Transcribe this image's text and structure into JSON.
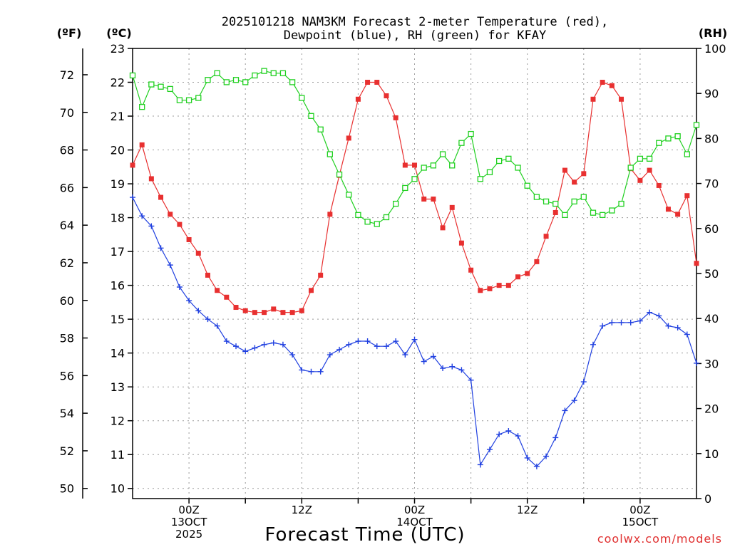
{
  "chart_data": {
    "type": "line",
    "title": [
      "2025101218 NAM3KM Forecast 2-meter Temperature (red),",
      "Dewpoint (blue), RH (green) for KFAY"
    ],
    "xlabel": "Forecast Time (UTC)",
    "credit": "coolwx.com/models",
    "units": {
      "fahrenheit": "(ºF)",
      "celsius": "(ºC)",
      "rh": "(RH)"
    },
    "x_range_hours": [
      0,
      60
    ],
    "celsius_range": [
      9.7,
      23
    ],
    "rh_range": [
      0,
      100
    ],
    "fahrenheit_ticks": [
      "50",
      "52",
      "54",
      "56",
      "58",
      "60",
      "62",
      "64",
      "66",
      "68",
      "70",
      "72"
    ],
    "celsius_ticks": [
      "10",
      "11",
      "12",
      "13",
      "14",
      "15",
      "16",
      "17",
      "18",
      "19",
      "20",
      "21",
      "22",
      "23"
    ],
    "rh_ticks": [
      "0",
      "10",
      "20",
      "30",
      "40",
      "50",
      "60",
      "70",
      "80",
      "90",
      "100"
    ],
    "x_ticks": [
      {
        "hour": 6,
        "lines": [
          "00Z",
          "13OCT",
          "2025"
        ]
      },
      {
        "hour": 18,
        "lines": [
          "12Z"
        ]
      },
      {
        "hour": 30,
        "lines": [
          "00Z",
          "14OCT"
        ]
      },
      {
        "hour": 42,
        "lines": [
          "12Z"
        ]
      },
      {
        "hour": 54,
        "lines": [
          "00Z",
          "15OCT"
        ]
      }
    ],
    "series": [
      {
        "name": "2-meter Temperature",
        "unit": "°C",
        "color": "#e83030",
        "marker": "filled-square",
        "values": [
          19.55,
          20.15,
          19.15,
          18.6,
          18.1,
          17.8,
          17.35,
          16.95,
          16.3,
          15.85,
          15.65,
          15.35,
          15.25,
          15.2,
          15.2,
          15.3,
          15.2,
          15.2,
          15.25,
          15.85,
          16.3,
          18.1,
          19.25,
          20.35,
          21.5,
          22.0,
          22.0,
          21.6,
          20.95,
          19.55,
          19.55,
          18.55,
          18.55,
          17.7,
          18.3,
          17.25,
          16.45,
          15.85,
          15.9,
          16.0,
          16.0,
          16.25,
          16.35,
          16.7,
          17.45,
          18.15,
          19.4,
          19.05,
          19.3,
          21.5,
          22.0,
          21.9,
          21.5,
          19.45,
          19.1,
          19.4,
          18.95,
          18.25,
          18.1,
          18.65,
          16.65
        ]
      },
      {
        "name": "Dewpoint",
        "unit": "°C",
        "color": "#2040e0",
        "marker": "plus",
        "values": [
          18.6,
          18.05,
          17.75,
          17.1,
          16.6,
          15.95,
          15.55,
          15.25,
          15.0,
          14.8,
          14.35,
          14.2,
          14.05,
          14.15,
          14.25,
          14.3,
          14.25,
          13.95,
          13.5,
          13.45,
          13.45,
          13.95,
          14.1,
          14.25,
          14.35,
          14.35,
          14.2,
          14.2,
          14.35,
          13.95,
          14.4,
          13.75,
          13.9,
          13.55,
          13.6,
          13.5,
          13.2,
          10.7,
          11.15,
          11.6,
          11.7,
          11.55,
          10.9,
          10.65,
          10.95,
          11.5,
          12.3,
          12.6,
          13.15,
          14.25,
          14.8,
          14.9,
          14.9,
          14.9,
          14.95,
          15.2,
          15.1,
          14.8,
          14.75,
          14.55,
          13.7
        ]
      },
      {
        "name": "RH",
        "unit": "%",
        "color": "#20d020",
        "marker": "open-square",
        "values": [
          94,
          87,
          92,
          91.5,
          91,
          88.5,
          88.5,
          89,
          93,
          94.5,
          92.5,
          93,
          92.5,
          94,
          95,
          94.5,
          94.5,
          92.5,
          89,
          85,
          82,
          76.5,
          72,
          67.5,
          63,
          61.5,
          61,
          62.5,
          65.5,
          69,
          71,
          73.5,
          74,
          76.5,
          74,
          79,
          81,
          71,
          72.5,
          75,
          75.5,
          73.5,
          69.5,
          67,
          66,
          65.5,
          63,
          66,
          67,
          63.5,
          63,
          64,
          65.5,
          73.5,
          75.5,
          75.5,
          79,
          80,
          80.5,
          76.5,
          83
        ]
      }
    ]
  }
}
